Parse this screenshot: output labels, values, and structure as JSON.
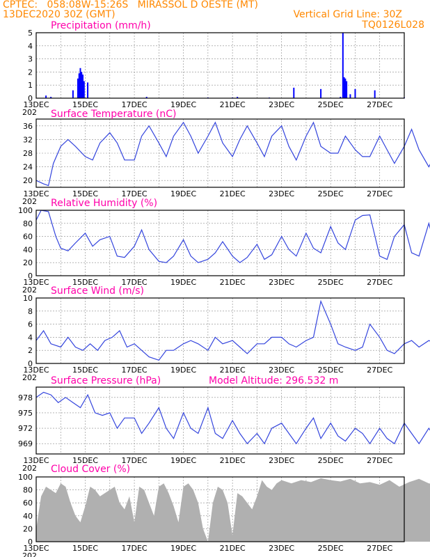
{
  "header": {
    "line1": "CPTEC:   058:08W-15:26S   MIRASSOL D OESTE (MT)",
    "line2": "13DEC2020 30Z (GMT)",
    "vgrid": "Vertical Grid Line: 30Z",
    "code": "TQ0126L028"
  },
  "model_altitude": "Model Altitude: 296.532 m",
  "x_axis": {
    "labels": [
      "13DEC",
      "15DEC",
      "17DEC",
      "19DEC",
      "21DEC",
      "23DEC",
      "25DEC",
      "27DEC"
    ],
    "sub_label": "202"
  },
  "colors": {
    "line": "#3344dd",
    "bar": "#0000ff",
    "cloud": "#b0b0b0",
    "title": "#ff00aa",
    "header": "#ff8800"
  },
  "chart_data": [
    {
      "id": "precip",
      "type": "bar",
      "title": "Precipitation (mm/h)",
      "ylim": [
        0,
        5
      ],
      "yticks": [
        0,
        1,
        2,
        3,
        4,
        5
      ],
      "x_unit": "day index from 13DEC",
      "bars": [
        [
          0.4,
          0.2
        ],
        [
          0.6,
          0.1
        ],
        [
          1.5,
          0.6
        ],
        [
          1.7,
          1.5
        ],
        [
          1.75,
          1.9
        ],
        [
          1.8,
          2.3
        ],
        [
          1.85,
          2.0
        ],
        [
          1.9,
          1.8
        ],
        [
          1.95,
          1.3
        ],
        [
          2.1,
          1.2
        ],
        [
          4.5,
          0.1
        ],
        [
          7.0,
          0.05
        ],
        [
          8.0,
          0.05
        ],
        [
          8.2,
          0.1
        ],
        [
          9.5,
          0.05
        ],
        [
          10.5,
          0.8
        ],
        [
          11.6,
          0.7
        ],
        [
          12.4,
          0.1
        ],
        [
          12.5,
          5.0
        ],
        [
          12.55,
          1.6
        ],
        [
          12.6,
          1.5
        ],
        [
          12.65,
          1.3
        ],
        [
          12.8,
          0.3
        ],
        [
          13.0,
          0.7
        ],
        [
          13.8,
          0.6
        ],
        [
          15.0,
          0.05
        ],
        [
          17.0,
          0.05
        ]
      ]
    },
    {
      "id": "temp",
      "type": "line",
      "title": "Surface Temperature (nC)",
      "ylim": [
        18,
        38
      ],
      "yticks": [
        20,
        24,
        28,
        32,
        36
      ],
      "x": [
        0,
        0.3,
        0.5,
        0.7,
        1.0,
        1.3,
        1.6,
        2.0,
        2.3,
        2.6,
        3.0,
        3.3,
        3.6,
        4.0,
        4.3,
        4.6,
        5.0,
        5.3,
        5.6,
        6.0,
        6.3,
        6.6,
        7.0,
        7.3,
        7.6,
        8.0,
        8.3,
        8.6,
        9.0,
        9.3,
        9.6,
        10.0,
        10.3,
        10.6,
        11.0,
        11.3,
        11.6,
        12.0,
        12.3,
        12.6,
        13.0,
        13.3,
        13.6,
        14.0,
        14.3,
        14.6,
        15.0,
        15.3,
        15.6,
        16.0,
        16.3,
        16.6,
        17.0,
        17.3,
        17.6,
        18.0,
        18.3,
        18.6,
        19.0,
        19.3,
        19.6,
        20.0,
        20.3,
        20.6,
        21.0
      ],
      "values": [
        20,
        19,
        18.5,
        25,
        30,
        32,
        30,
        27,
        26,
        31,
        34,
        31,
        26,
        26,
        33,
        36,
        31,
        27,
        33,
        37,
        33,
        28,
        33,
        37,
        31,
        27,
        32,
        36,
        31,
        27,
        33,
        36,
        30,
        26,
        33,
        37,
        30,
        28,
        28,
        33,
        29,
        27,
        27,
        33,
        29,
        25,
        30,
        35,
        29,
        24,
        28,
        35,
        28,
        25,
        29,
        36,
        29,
        26,
        31,
        36,
        30,
        25,
        30,
        35,
        33
      ]
    },
    {
      "id": "rh",
      "type": "line",
      "title": "Relative Humidity (%)",
      "ylim": [
        0,
        100
      ],
      "yticks": [
        0,
        20,
        40,
        60,
        80,
        100
      ],
      "x": [
        0,
        0.2,
        0.5,
        0.8,
        1.0,
        1.3,
        1.6,
        2.0,
        2.3,
        2.6,
        3.0,
        3.3,
        3.6,
        4.0,
        4.3,
        4.6,
        5.0,
        5.3,
        5.6,
        6.0,
        6.3,
        6.6,
        7.0,
        7.3,
        7.6,
        8.0,
        8.3,
        8.6,
        9.0,
        9.3,
        9.6,
        10.0,
        10.3,
        10.6,
        11.0,
        11.3,
        11.6,
        12.0,
        12.3,
        12.6,
        13.0,
        13.3,
        13.6,
        14.0,
        14.3,
        14.6,
        15.0,
        15.3,
        15.6,
        16.0,
        16.3,
        16.6,
        17.0,
        17.3,
        17.6,
        18.0,
        18.3,
        18.6,
        19.0,
        19.3,
        19.6,
        20.0,
        20.3,
        20.6,
        21.0
      ],
      "values": [
        85,
        100,
        98,
        60,
        42,
        38,
        50,
        65,
        45,
        55,
        60,
        30,
        28,
        45,
        70,
        40,
        22,
        20,
        30,
        55,
        30,
        20,
        25,
        35,
        52,
        30,
        20,
        28,
        48,
        25,
        32,
        60,
        40,
        30,
        65,
        42,
        35,
        75,
        50,
        40,
        85,
        92,
        93,
        30,
        25,
        60,
        78,
        35,
        30,
        80,
        40,
        25,
        75,
        40,
        30,
        72,
        35,
        25,
        65,
        85,
        35,
        25,
        68,
        32,
        40
      ]
    },
    {
      "id": "wind",
      "type": "line",
      "title": "Surface Wind (m/s)",
      "ylim": [
        0,
        10
      ],
      "yticks": [
        0,
        2,
        4,
        6,
        8,
        10
      ],
      "x": [
        0,
        0.3,
        0.6,
        1.0,
        1.3,
        1.6,
        1.9,
        2.2,
        2.5,
        2.8,
        3.1,
        3.4,
        3.7,
        4.0,
        4.3,
        4.6,
        5.0,
        5.3,
        5.6,
        6.0,
        6.3,
        6.6,
        7.0,
        7.3,
        7.6,
        8.0,
        8.3,
        8.6,
        9.0,
        9.3,
        9.6,
        10.0,
        10.3,
        10.6,
        11.0,
        11.3,
        11.6,
        12.0,
        12.3,
        12.6,
        13.0,
        13.3,
        13.6,
        14.0,
        14.3,
        14.6,
        15.0,
        15.3,
        15.6,
        16.0,
        16.3,
        16.6,
        17.0,
        17.3,
        17.6,
        18.0,
        18.3,
        18.6,
        19.0,
        19.3,
        19.6,
        20.0,
        20.3,
        20.6,
        21.0
      ],
      "values": [
        3.5,
        5,
        3,
        2.5,
        4,
        2.5,
        2,
        3,
        2,
        3.5,
        4,
        5,
        2.5,
        3,
        2,
        1,
        0.5,
        2,
        2,
        3,
        3.5,
        3,
        2,
        4,
        3,
        3.5,
        2.5,
        1.5,
        3,
        3,
        4,
        4,
        3,
        2.5,
        3.5,
        4,
        9.5,
        6,
        3,
        2.5,
        2,
        2.5,
        6,
        4,
        2,
        1.5,
        3,
        3.5,
        2.5,
        3.5,
        3,
        3.5,
        4.5,
        3,
        3,
        4,
        3,
        2.5,
        3,
        8,
        5,
        4,
        7,
        4,
        3.5
      ]
    },
    {
      "id": "pressure",
      "type": "line",
      "title": "Surface Pressure (hPa)",
      "ylim": [
        967,
        980
      ],
      "yticks": [
        969,
        972,
        975,
        978
      ],
      "x": [
        0,
        0.3,
        0.6,
        0.9,
        1.2,
        1.5,
        1.8,
        2.1,
        2.4,
        2.7,
        3.0,
        3.3,
        3.6,
        4.0,
        4.3,
        4.6,
        5.0,
        5.3,
        5.6,
        6.0,
        6.3,
        6.6,
        7.0,
        7.3,
        7.6,
        8.0,
        8.3,
        8.6,
        9.0,
        9.3,
        9.6,
        10.0,
        10.3,
        10.6,
        11.0,
        11.3,
        11.6,
        12.0,
        12.3,
        12.6,
        13.0,
        13.3,
        13.6,
        14.0,
        14.3,
        14.6,
        15.0,
        15.3,
        15.6,
        16.0,
        16.3,
        16.6,
        17.0,
        17.3,
        17.6,
        18.0,
        18.3,
        18.6,
        19.0,
        19.3,
        19.6,
        20.0,
        20.3,
        20.6,
        21.0
      ],
      "values": [
        978,
        979,
        978.5,
        977,
        978,
        977,
        976,
        978.5,
        975,
        974.5,
        975,
        972,
        974,
        974,
        971,
        973,
        976,
        972,
        970,
        975,
        972,
        971,
        976,
        971,
        970,
        973.5,
        971,
        969,
        971,
        969,
        972,
        973,
        971,
        969,
        972,
        974,
        970,
        973,
        970.5,
        969.5,
        972,
        971,
        969,
        972,
        970,
        969,
        973,
        971,
        969,
        972,
        970,
        969,
        973,
        971,
        970,
        974,
        971,
        969,
        972,
        969,
        968,
        970,
        972,
        967,
        970
      ]
    },
    {
      "id": "cloud",
      "type": "area",
      "title": "Cloud Cover (%)",
      "ylim": [
        0,
        100
      ],
      "yticks": [
        0,
        20,
        40,
        60,
        80,
        100
      ],
      "x": [
        0,
        0.2,
        0.4,
        0.6,
        0.8,
        1.0,
        1.2,
        1.4,
        1.6,
        1.8,
        2.0,
        2.2,
        2.4,
        2.6,
        2.8,
        3.0,
        3.2,
        3.4,
        3.6,
        3.8,
        4.0,
        4.2,
        4.4,
        4.6,
        4.8,
        5.0,
        5.2,
        5.4,
        5.6,
        5.8,
        6.0,
        6.2,
        6.4,
        6.6,
        6.8,
        7.0,
        7.2,
        7.4,
        7.6,
        7.8,
        8.0,
        8.2,
        8.4,
        8.6,
        8.8,
        9.0,
        9.2,
        9.4,
        9.6,
        9.8,
        10.0,
        10.4,
        10.8,
        11.2,
        11.6,
        12.0,
        12.4,
        12.8,
        13.2,
        13.6,
        14.0,
        14.4,
        14.8,
        15.2,
        15.6,
        16.0,
        16.4,
        16.8,
        17.2,
        17.6,
        18.0,
        18.4,
        18.8,
        19.2,
        19.6,
        20.0,
        20.4,
        20.8,
        21.0
      ],
      "values": [
        20,
        70,
        85,
        80,
        75,
        90,
        85,
        60,
        40,
        30,
        55,
        85,
        80,
        70,
        75,
        80,
        85,
        60,
        50,
        70,
        30,
        85,
        80,
        60,
        40,
        85,
        90,
        75,
        55,
        30,
        85,
        90,
        80,
        60,
        20,
        0,
        60,
        85,
        80,
        60,
        10,
        75,
        70,
        60,
        50,
        70,
        95,
        85,
        80,
        90,
        95,
        90,
        95,
        92,
        98,
        95,
        93,
        97,
        90,
        92,
        88,
        95,
        85,
        92,
        97,
        90,
        88,
        93,
        87,
        91,
        95,
        90,
        88,
        85,
        82,
        92,
        88,
        84,
        90
      ]
    }
  ]
}
